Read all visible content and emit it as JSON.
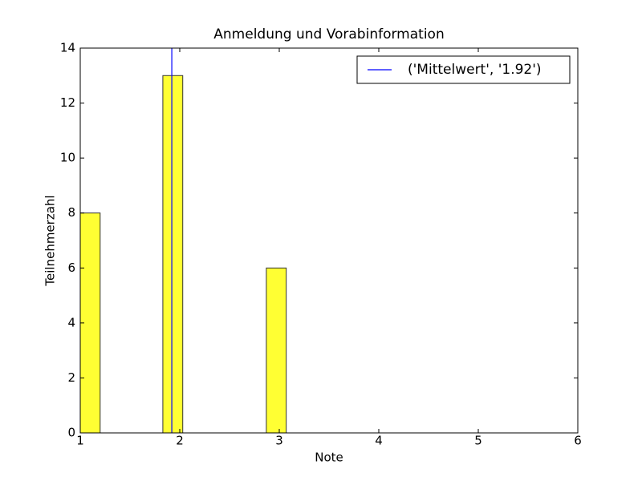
{
  "chart_data": {
    "type": "bar",
    "title": "Anmeldung und Vorabinformation",
    "x_label": "Note",
    "y_label": "Teilnehmerzahl",
    "bar_edges": [
      [
        1.0,
        1.2
      ],
      [
        1.83,
        2.03
      ],
      [
        2.87,
        3.07
      ]
    ],
    "values": [
      8,
      13,
      6
    ],
    "color": "#ffff33",
    "mean_line": {
      "name": "('Mittelwert', '1.92')",
      "x": 1.92,
      "color": "#0000ff"
    },
    "xlim": [
      1,
      6
    ],
    "xticks": [
      1,
      2,
      3,
      4,
      5,
      6
    ],
    "ylim": [
      0,
      14
    ],
    "yticks": [
      0,
      2,
      4,
      6,
      8,
      10,
      12,
      14
    ],
    "legend": "upper right"
  }
}
